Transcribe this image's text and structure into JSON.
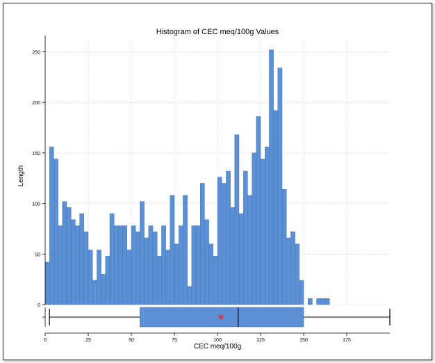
{
  "chart_data": {
    "type": "bar",
    "title": "Histogram of CEC meq/100g Values",
    "xlabel": "CEC meq/100g",
    "ylabel": "Length",
    "bin_width": 2.5,
    "x_start": 0,
    "xlim": [
      0,
      200
    ],
    "ylim": [
      0,
      262
    ],
    "x_ticks": [
      0,
      25,
      50,
      75,
      100,
      125,
      150,
      175
    ],
    "y_ticks": [
      0,
      50,
      100,
      150,
      200,
      250
    ],
    "grid": true,
    "colors": {
      "bar": "#5b8fd6",
      "bar_edge": "#3f6fae",
      "mean_marker": "#e03030",
      "grid": "#c8c8c8"
    },
    "values": [
      42,
      156,
      144,
      78,
      102,
      96,
      84,
      78,
      90,
      72,
      54,
      24,
      54,
      30,
      48,
      90,
      78,
      78,
      78,
      54,
      78,
      72,
      102,
      66,
      78,
      72,
      48,
      78,
      54,
      108,
      60,
      78,
      108,
      18,
      78,
      78,
      120,
      84,
      60,
      48,
      126,
      120,
      132,
      96,
      168,
      90,
      132,
      108,
      150,
      186,
      144,
      156,
      252,
      192,
      234,
      114,
      66,
      72,
      60,
      24,
      0,
      6,
      0,
      6,
      6,
      6
    ],
    "boxplot": {
      "whisker_low": 2.5,
      "q1": 55,
      "median": 112,
      "q3": 150,
      "whisker_high": 200,
      "mean": 102
    }
  }
}
